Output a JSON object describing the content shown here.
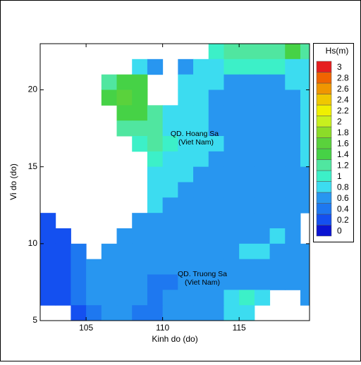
{
  "chart_data": {
    "type": "heatmap",
    "xlabel": "Kinh do (do)",
    "ylabel": "Vi do (do)",
    "annotations": [
      "QD. Hoang Sa",
      "(Viet Nam)",
      "QD. Truong Sa",
      "(Viet Nam)"
    ],
    "xlim": [
      102,
      119.6
    ],
    "ylim": [
      5,
      23
    ],
    "xticks": [
      105,
      110,
      115
    ],
    "yticks": [
      5,
      10,
      15,
      20
    ],
    "colorbar_title": "Hs(m)",
    "levels": [
      0,
      0.2,
      0.4,
      0.6,
      0.8,
      1,
      1.2,
      1.4,
      1.6,
      1.8,
      2,
      2.2,
      2.4,
      2.6,
      2.8,
      3
    ],
    "colors": [
      "#0a14d2",
      "#1450f0",
      "#1e78f0",
      "#2896f0",
      "#3cdcf0",
      "#3cf0c8",
      "#50e6a0",
      "#46d246",
      "#5ad23c",
      "#8cdc28",
      "#c8f01e",
      "#f0f000",
      "#f0c800",
      "#f09600",
      "#f06400",
      "#e61e1e"
    ],
    "x": [
      102.5,
      103.5,
      104.5,
      105.5,
      106.5,
      107.5,
      108.5,
      109.5,
      110.5,
      111.5,
      112.5,
      113.5,
      114.5,
      115.5,
      116.5,
      117.5,
      118.5,
      119.5
    ],
    "y": [
      22.5,
      21.5,
      20.5,
      19.5,
      18.5,
      17.5,
      16.5,
      15.5,
      14.5,
      13.5,
      12.5,
      11.5,
      10.5,
      9.5,
      8.5,
      7.5,
      6.5,
      5.5
    ],
    "z": [
      [
        null,
        null,
        null,
        null,
        null,
        null,
        null,
        null,
        null,
        null,
        null,
        1.0,
        1.2,
        1.2,
        1.2,
        1.2,
        1.4,
        1.2
      ],
      [
        null,
        null,
        null,
        null,
        null,
        null,
        0.8,
        0.6,
        null,
        0.6,
        0.8,
        0.8,
        1.0,
        1.0,
        1.0,
        1.0,
        0.8,
        0.8
      ],
      [
        null,
        null,
        null,
        null,
        1.2,
        1.4,
        1.4,
        null,
        null,
        0.8,
        0.8,
        0.8,
        0.6,
        0.6,
        0.6,
        0.6,
        0.8,
        0.8
      ],
      [
        null,
        null,
        null,
        null,
        1.4,
        1.6,
        1.4,
        null,
        null,
        0.8,
        0.8,
        0.6,
        0.6,
        0.6,
        0.6,
        0.6,
        0.6,
        0.8
      ],
      [
        null,
        null,
        null,
        null,
        null,
        1.4,
        1.4,
        1.2,
        0.8,
        0.8,
        0.8,
        0.6,
        0.6,
        0.6,
        0.6,
        0.6,
        0.6,
        0.8
      ],
      [
        null,
        null,
        null,
        null,
        null,
        1.2,
        1.2,
        1.2,
        0.8,
        0.8,
        0.8,
        0.6,
        0.6,
        0.6,
        0.6,
        0.6,
        0.6,
        0.8
      ],
      [
        null,
        null,
        null,
        null,
        null,
        null,
        1.0,
        1.2,
        1.0,
        0.8,
        0.8,
        0.8,
        0.6,
        0.6,
        0.6,
        0.6,
        0.6,
        0.8
      ],
      [
        null,
        null,
        null,
        null,
        null,
        null,
        null,
        1.0,
        0.8,
        0.8,
        0.8,
        0.6,
        0.6,
        0.6,
        0.6,
        0.6,
        0.6,
        0.8
      ],
      [
        null,
        null,
        null,
        null,
        null,
        null,
        null,
        0.8,
        0.8,
        0.8,
        0.6,
        0.6,
        0.6,
        0.6,
        0.6,
        0.6,
        0.6,
        0.6
      ],
      [
        null,
        null,
        null,
        null,
        null,
        null,
        null,
        0.8,
        0.8,
        0.6,
        0.6,
        0.6,
        0.6,
        0.6,
        0.6,
        0.6,
        0.6,
        0.6
      ],
      [
        null,
        null,
        null,
        null,
        null,
        null,
        null,
        0.8,
        0.6,
        0.6,
        0.6,
        0.6,
        0.6,
        0.6,
        0.6,
        0.6,
        0.6,
        0.6
      ],
      [
        0.2,
        null,
        null,
        null,
        null,
        null,
        0.6,
        0.6,
        0.6,
        0.6,
        0.6,
        0.6,
        0.6,
        0.6,
        0.6,
        0.6,
        0.6,
        null
      ],
      [
        0.2,
        0.2,
        null,
        null,
        null,
        0.6,
        0.6,
        0.6,
        0.6,
        0.6,
        0.6,
        0.6,
        0.6,
        0.6,
        0.6,
        0.8,
        0.6,
        null
      ],
      [
        0.2,
        0.2,
        0.4,
        null,
        0.6,
        0.6,
        0.6,
        0.6,
        0.6,
        0.6,
        0.6,
        0.6,
        0.6,
        0.8,
        0.8,
        0.6,
        0.6,
        0.6
      ],
      [
        0.2,
        0.2,
        0.4,
        0.6,
        0.6,
        0.6,
        0.6,
        0.6,
        0.6,
        0.6,
        0.6,
        0.6,
        0.6,
        0.6,
        0.6,
        0.6,
        0.6,
        0.6
      ],
      [
        0.2,
        0.2,
        0.4,
        0.6,
        0.6,
        0.6,
        0.6,
        0.4,
        0.4,
        0.6,
        0.6,
        0.6,
        0.6,
        0.6,
        0.6,
        0.6,
        0.6,
        0.6
      ],
      [
        0.2,
        0.2,
        0.4,
        0.6,
        0.6,
        0.6,
        0.6,
        0.4,
        0.6,
        0.6,
        0.6,
        0.6,
        0.8,
        1.0,
        0.8,
        null,
        null,
        0.6
      ],
      [
        null,
        null,
        0.2,
        0.4,
        0.6,
        0.6,
        0.4,
        0.4,
        0.6,
        0.6,
        0.6,
        0.6,
        0.8,
        0.8,
        null,
        null,
        null,
        null
      ]
    ]
  }
}
